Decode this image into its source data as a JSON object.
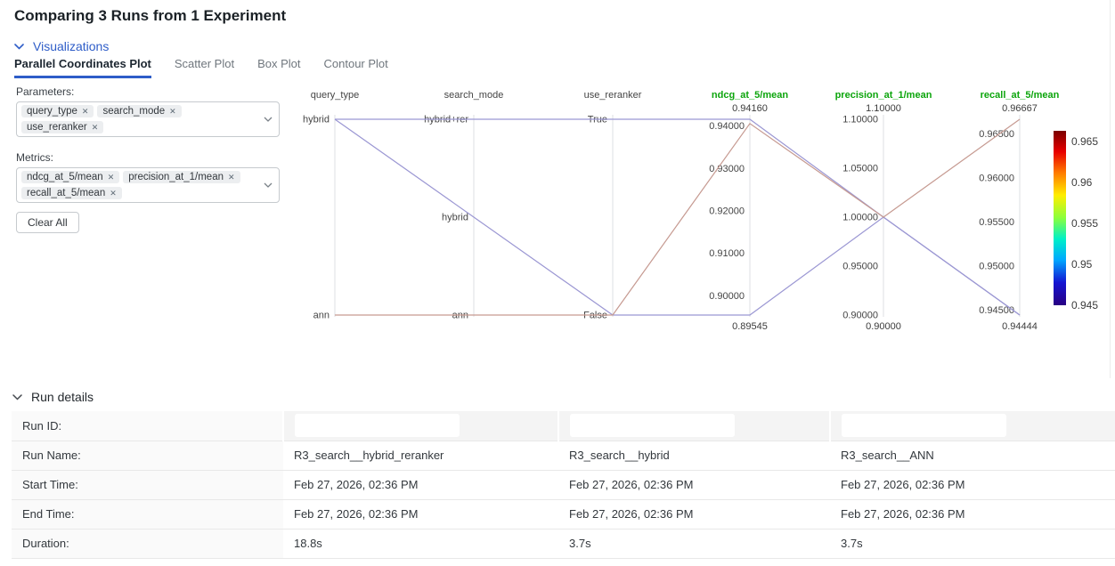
{
  "header": {
    "title": "Comparing 3 Runs from 1 Experiment",
    "visualizations_label": "Visualizations"
  },
  "tabs": [
    {
      "label": "Parallel Coordinates Plot",
      "active": true
    },
    {
      "label": "Scatter Plot",
      "active": false
    },
    {
      "label": "Box Plot",
      "active": false
    },
    {
      "label": "Contour Plot",
      "active": false
    }
  ],
  "controls": {
    "parameters_label": "Parameters:",
    "metrics_label": "Metrics:",
    "clear_all_label": "Clear All",
    "remove_glyph": "✕",
    "parameter_tags": [
      "query_type",
      "search_mode",
      "use_reranker"
    ],
    "metric_tags": [
      "ndcg_at_5/mean",
      "precision_at_1/mean",
      "recall_at_5/mean"
    ]
  },
  "chart_data": {
    "type": "parallel_coordinates",
    "color_metric": "recall_at_5/mean",
    "axes": [
      {
        "name": "query_type",
        "kind": "param",
        "ticks": [
          {
            "label": "hybrid",
            "pos": 1
          },
          {
            "label": "ann",
            "pos": 0
          }
        ]
      },
      {
        "name": "search_mode",
        "kind": "param",
        "ticks": [
          {
            "label": "hybrid+rer",
            "pos": 1
          },
          {
            "label": "hybrid",
            "pos": 0.5
          },
          {
            "label": "ann",
            "pos": 0
          }
        ]
      },
      {
        "name": "use_reranker",
        "kind": "param",
        "ticks": [
          {
            "label": "True",
            "pos": 1
          },
          {
            "label": "False",
            "pos": 0
          }
        ]
      },
      {
        "name": "ndcg_at_5/mean",
        "kind": "metric",
        "range": [
          0.89545,
          0.9416
        ],
        "top_label": "0.94160",
        "bottom_label": "0.89545",
        "ticks": [
          {
            "label": "0.94000",
            "value": 0.94
          },
          {
            "label": "0.93000",
            "value": 0.93
          },
          {
            "label": "0.92000",
            "value": 0.92
          },
          {
            "label": "0.91000",
            "value": 0.91
          },
          {
            "label": "0.90000",
            "value": 0.9
          }
        ]
      },
      {
        "name": "precision_at_1/mean",
        "kind": "metric",
        "range": [
          0.9,
          1.1
        ],
        "top_label": "1.10000",
        "bottom_label": "0.90000",
        "ticks": [
          {
            "label": "1.10000",
            "value": 1.1
          },
          {
            "label": "1.05000",
            "value": 1.05
          },
          {
            "label": "1.00000",
            "value": 1.0
          },
          {
            "label": "0.95000",
            "value": 0.95
          },
          {
            "label": "0.90000",
            "value": 0.9
          }
        ]
      },
      {
        "name": "recall_at_5/mean",
        "kind": "metric",
        "range": [
          0.94444,
          0.96667
        ],
        "top_label": "0.96667",
        "bottom_label": "0.94444",
        "ticks": [
          {
            "label": "0.96500",
            "value": 0.965
          },
          {
            "label": "0.96000",
            "value": 0.96
          },
          {
            "label": "0.95500",
            "value": 0.955
          },
          {
            "label": "0.95000",
            "value": 0.95
          },
          {
            "label": "0.94500",
            "value": 0.945
          }
        ]
      }
    ],
    "runs": [
      {
        "name": "R3_search__hybrid_reranker",
        "values": [
          "hybrid",
          "hybrid+rer",
          "True",
          0.9416,
          1.0,
          0.94444
        ],
        "line_color": "#9b97d3"
      },
      {
        "name": "R3_search__hybrid",
        "values": [
          "hybrid",
          "hybrid",
          "False",
          0.89545,
          1.0,
          0.94444
        ],
        "line_color": "#9b97d3"
      },
      {
        "name": "R3_search__ANN",
        "values": [
          "ann",
          "ann",
          "False",
          0.9406,
          1.0,
          0.96667
        ],
        "line_color": "#c69a91"
      }
    ],
    "colorbar": {
      "ticks": [
        {
          "label": "0.965",
          "f": 0.94
        },
        {
          "label": "0.96",
          "f": 0.705
        },
        {
          "label": "0.955",
          "f": 0.47
        },
        {
          "label": "0.95",
          "f": 0.235
        },
        {
          "label": "0.945",
          "f": 0.0
        }
      ]
    },
    "colors": {
      "metric_title": "#0ca50c",
      "param_title": "#444444",
      "tick_label": "#444444",
      "axis_line": "#dcdfe3"
    }
  },
  "run_details": {
    "section_label": "Run details",
    "rows": [
      {
        "label": "Run ID:",
        "redacted": true
      },
      {
        "label": "Run Name:",
        "values": [
          "R3_search__hybrid_reranker",
          "R3_search__hybrid",
          "R3_search__ANN"
        ]
      },
      {
        "label": "Start Time:",
        "values": [
          "Feb 27, 2026, 02:36 PM",
          "Feb 27, 2026, 02:36 PM",
          "Feb 27, 2026, 02:36 PM"
        ]
      },
      {
        "label": "End Time:",
        "values": [
          "Feb 27, 2026, 02:36 PM",
          "Feb 27, 2026, 02:36 PM",
          "Feb 27, 2026, 02:36 PM"
        ]
      },
      {
        "label": "Duration:",
        "values": [
          "18.8s",
          "3.7s",
          "3.7s"
        ]
      }
    ]
  }
}
